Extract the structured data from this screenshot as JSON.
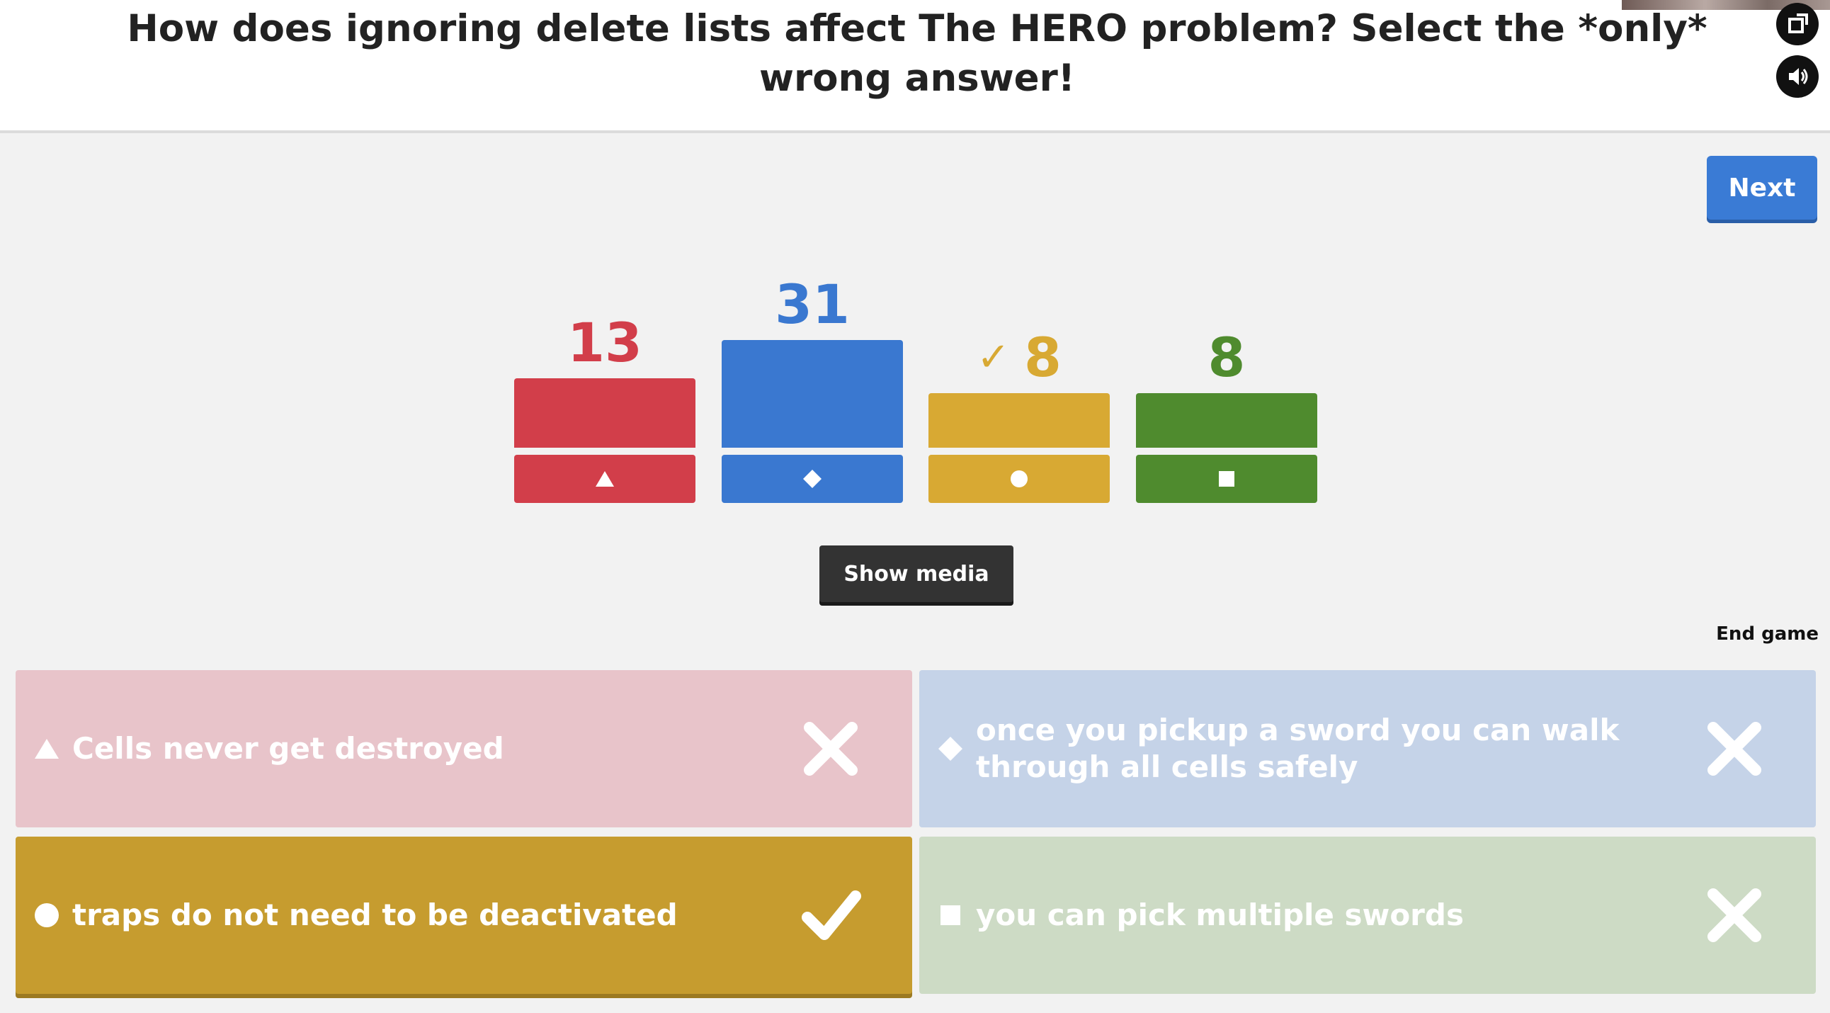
{
  "question": {
    "text": "How does ignoring delete lists affect The HERO problem? Select the *only* wrong answer!"
  },
  "header_icons": {
    "fullscreen": "fullscreen-icon",
    "sound": "speaker-icon"
  },
  "next_label": "Next",
  "results": [
    {
      "count": "13",
      "value": 13,
      "shape": "triangle",
      "color": "#d23e4a",
      "correct": false
    },
    {
      "count": "31",
      "value": 31,
      "shape": "diamond",
      "color": "#3a78d0",
      "correct": false
    },
    {
      "count": "8",
      "value": 8,
      "shape": "circle",
      "color": "#d8a933",
      "correct": true
    },
    {
      "count": "8",
      "value": 8,
      "shape": "square",
      "color": "#4f8b2e",
      "correct": false
    }
  ],
  "show_media_label": "Show media",
  "end_game_label": "End game",
  "answers": [
    {
      "text": "Cells never get destroyed",
      "shape": "triangle",
      "color": "#e8c4ca",
      "correct": false
    },
    {
      "text": "once you pickup a sword you can walk through all cells safely",
      "shape": "diamond",
      "color": "#c5d3e8",
      "correct": false
    },
    {
      "text": "traps do not need to be deactivated",
      "shape": "circle",
      "color": "#c69c2f",
      "correct": true
    },
    {
      "text": "you can pick multiple swords",
      "shape": "square",
      "color": "#cddbc5",
      "correct": false
    }
  ]
}
